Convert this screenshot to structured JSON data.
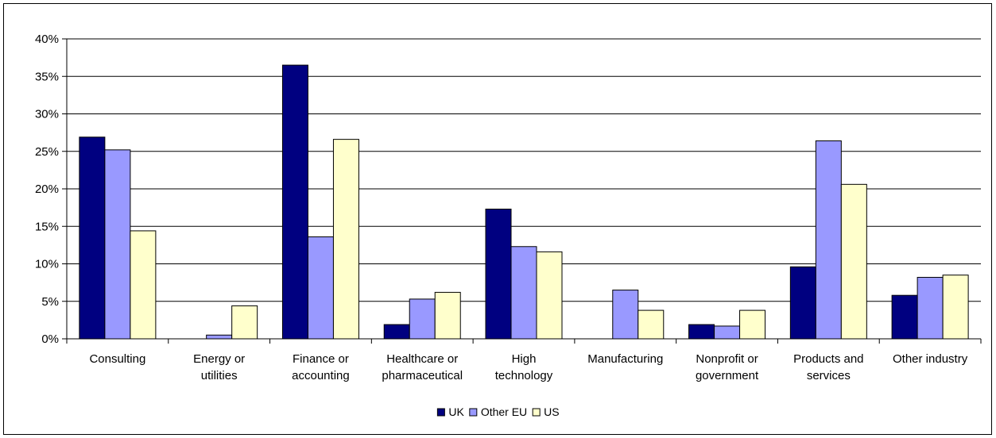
{
  "chart_data": {
    "type": "bar",
    "title": "",
    "xlabel": "",
    "ylabel": "",
    "ylim": [
      0,
      40
    ],
    "yticks": [
      0,
      5,
      10,
      15,
      20,
      25,
      30,
      35,
      40
    ],
    "ytick_suffix": "%",
    "grid": true,
    "legend_position": "bottom",
    "categories": [
      [
        "Consulting"
      ],
      [
        "Energy or",
        "utilities"
      ],
      [
        "Finance or",
        "accounting"
      ],
      [
        "Healthcare or",
        "pharmaceutical"
      ],
      [
        "High",
        "technology"
      ],
      [
        "Manufacturing"
      ],
      [
        "Nonprofit or",
        "government"
      ],
      [
        "Products and",
        "services"
      ],
      [
        "Other industry"
      ]
    ],
    "series": [
      {
        "name": "UK",
        "color": "#000080",
        "values": [
          26.9,
          0,
          36.5,
          1.9,
          17.3,
          0,
          1.9,
          9.6,
          5.8
        ]
      },
      {
        "name": "Other EU",
        "color": "#9999ff",
        "values": [
          25.2,
          0.5,
          13.6,
          5.3,
          12.3,
          6.5,
          1.7,
          26.4,
          8.2
        ]
      },
      {
        "name": "US",
        "color": "#ffffcc",
        "values": [
          14.4,
          4.4,
          26.6,
          6.2,
          11.6,
          3.8,
          3.8,
          20.6,
          8.5
        ]
      }
    ]
  }
}
